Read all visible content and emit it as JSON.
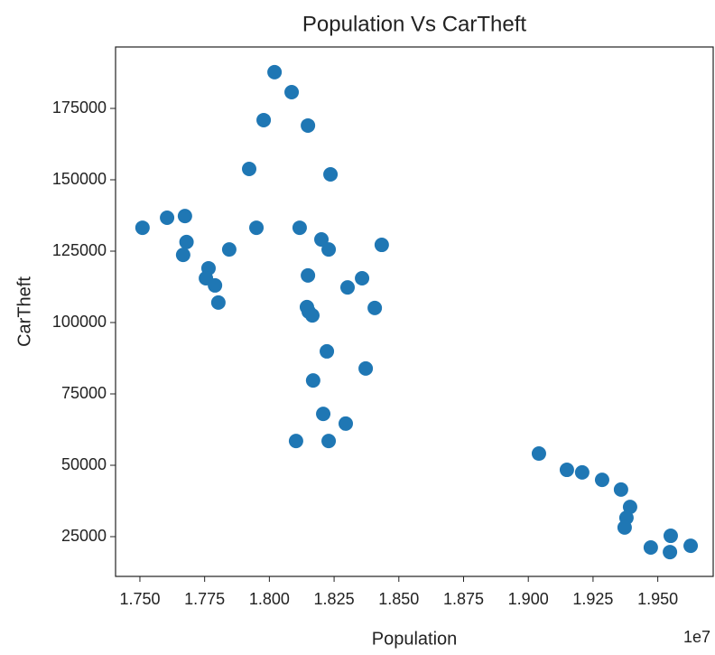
{
  "chart_data": {
    "type": "scatter",
    "title": "Population Vs CarTheft",
    "x_label": "Population",
    "y_label": "CarTheft",
    "x_offset_label": "1e7",
    "color": "#1f77b4",
    "grid": false,
    "xlim": [
      1.7406,
      1.9714
    ],
    "ylim": [
      11076,
      196519
    ],
    "xticks": [
      {
        "value": 1.75,
        "label": "1.750"
      },
      {
        "value": 1.775,
        "label": "1.775"
      },
      {
        "value": 1.8,
        "label": "1.800"
      },
      {
        "value": 1.825,
        "label": "1.825"
      },
      {
        "value": 1.85,
        "label": "1.850"
      },
      {
        "value": 1.875,
        "label": "1.875"
      },
      {
        "value": 1.9,
        "label": "1.900"
      },
      {
        "value": 1.925,
        "label": "1.925"
      },
      {
        "value": 1.95,
        "label": "1.950"
      }
    ],
    "yticks": [
      25000,
      50000,
      75000,
      100000,
      125000,
      150000,
      175000
    ],
    "x": [
      1.751,
      1.7605,
      1.7674,
      1.768,
      1.7667,
      1.7765,
      1.7755,
      1.779,
      1.7803,
      1.7845,
      1.7922,
      1.795,
      1.7978,
      1.802,
      1.8086,
      1.8149,
      1.8236,
      1.8117,
      1.8201,
      1.8229,
      1.8149,
      1.8145,
      1.8152,
      1.8166,
      1.8302,
      1.8358,
      1.8407,
      1.8434,
      1.8222,
      1.8372,
      1.8169,
      1.8208,
      1.8295,
      1.8103,
      1.8229,
      1.9041,
      1.9149,
      1.9208,
      1.9285,
      1.9358,
      1.9393,
      1.9379,
      1.9372,
      1.9473,
      1.955,
      1.9547,
      1.9627
    ],
    "values": [
      133200,
      136700,
      137300,
      128200,
      123700,
      119000,
      115500,
      113000,
      107000,
      125600,
      153800,
      133200,
      170900,
      187700,
      180700,
      169000,
      151900,
      133200,
      129100,
      125600,
      116500,
      105400,
      103800,
      102500,
      112300,
      115500,
      105100,
      127200,
      89900,
      83900,
      79700,
      68000,
      64600,
      58500,
      58500,
      54100,
      48400,
      47500,
      44900,
      41500,
      35400,
      31600,
      28200,
      21200,
      25300,
      19600,
      21800
    ]
  }
}
